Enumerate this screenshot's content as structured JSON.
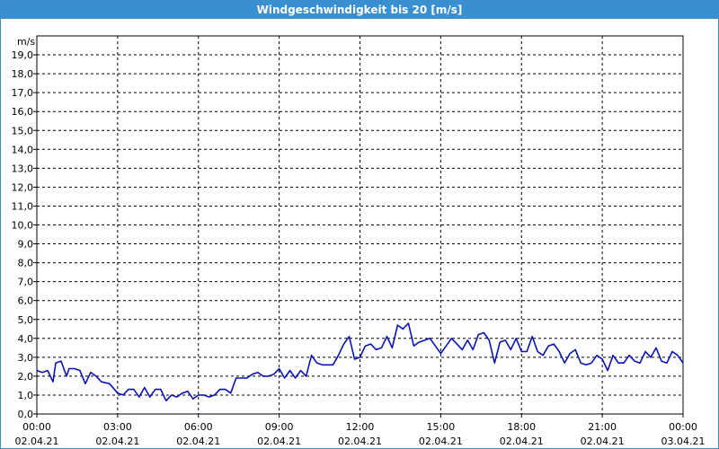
{
  "window": {
    "title": "Windgeschwindigkeit bis 20 [m/s]"
  },
  "colors": {
    "titlebar": "#3a8fd0",
    "series": "#0a14b4",
    "grid": "#000000"
  },
  "chart_data": {
    "type": "line",
    "title": "Windgeschwindigkeit bis 20 [m/s]",
    "ylabel": "m/s",
    "xlabel": "",
    "ylim": [
      0,
      20
    ],
    "y_ticks": [
      "0,0",
      "1,0",
      "2,0",
      "3,0",
      "4,0",
      "5,0",
      "6,0",
      "7,0",
      "8,0",
      "9,0",
      "10,0",
      "11,0",
      "12,0",
      "13,0",
      "14,0",
      "15,0",
      "16,0",
      "17,0",
      "18,0",
      "19,0"
    ],
    "x_ticks": [
      {
        "time": "00:00",
        "date": "02.04.21"
      },
      {
        "time": "03:00",
        "date": "02.04.21"
      },
      {
        "time": "06:00",
        "date": "02.04.21"
      },
      {
        "time": "09:00",
        "date": "02.04.21"
      },
      {
        "time": "12:00",
        "date": "02.04.21"
      },
      {
        "time": "15:00",
        "date": "02.04.21"
      },
      {
        "time": "18:00",
        "date": "02.04.21"
      },
      {
        "time": "21:00",
        "date": "02.04.21"
      },
      {
        "time": "00:00",
        "date": "03.04.21"
      }
    ],
    "grid": true,
    "series": [
      {
        "x_unit": "hours",
        "x": [
          0.0,
          0.2,
          0.4,
          0.6,
          0.7,
          0.9,
          1.1,
          1.2,
          1.4,
          1.6,
          1.8,
          2.0,
          2.2,
          2.4,
          2.7,
          3.0,
          3.2,
          3.4,
          3.6,
          3.8,
          4.0,
          4.2,
          4.4,
          4.6,
          4.8,
          5.0,
          5.2,
          5.4,
          5.6,
          5.8,
          6.0,
          6.2,
          6.4,
          6.6,
          6.8,
          7.0,
          7.2,
          7.4,
          7.6,
          7.8,
          8.0,
          8.2,
          8.4,
          8.6,
          8.8,
          9.0,
          9.2,
          9.4,
          9.6,
          9.8,
          10.0,
          10.2,
          10.4,
          10.6,
          10.8,
          11.0,
          11.2,
          11.4,
          11.6,
          11.8,
          12.0,
          12.2,
          12.4,
          12.6,
          12.8,
          13.0,
          13.2,
          13.4,
          13.6,
          13.8,
          14.0,
          14.2,
          14.4,
          14.6,
          14.8,
          15.0,
          15.2,
          15.4,
          15.6,
          15.8,
          16.0,
          16.2,
          16.4,
          16.6,
          16.8,
          17.0,
          17.2,
          17.4,
          17.6,
          17.8,
          18.0,
          18.2,
          18.4,
          18.6,
          18.8,
          19.0,
          19.2,
          19.4,
          19.6,
          19.8,
          20.0,
          20.2,
          20.4,
          20.6,
          20.8,
          21.0,
          21.2,
          21.4,
          21.6,
          21.8,
          22.0,
          22.2,
          22.4,
          22.6,
          22.8,
          23.0,
          23.2,
          23.4,
          23.6,
          23.8,
          24.0
        ],
        "values": [
          2.3,
          2.2,
          2.3,
          1.7,
          2.7,
          2.8,
          2.0,
          2.4,
          2.4,
          2.3,
          1.6,
          2.2,
          2.0,
          1.7,
          1.6,
          1.1,
          1.0,
          1.3,
          1.3,
          0.9,
          1.4,
          0.9,
          1.3,
          1.3,
          0.7,
          1.0,
          0.9,
          1.1,
          1.2,
          0.8,
          1.0,
          1.0,
          0.9,
          1.0,
          1.3,
          1.3,
          1.1,
          1.9,
          1.9,
          1.9,
          2.1,
          2.2,
          2.0,
          2.0,
          2.1,
          2.4,
          1.9,
          2.3,
          1.9,
          2.3,
          2.0,
          3.1,
          2.7,
          2.6,
          2.6,
          2.6,
          3.1,
          3.7,
          4.1,
          2.9,
          3.0,
          3.6,
          3.7,
          3.4,
          3.5,
          4.1,
          3.5,
          4.7,
          4.5,
          4.8,
          3.6,
          3.8,
          3.9,
          4.0,
          3.6,
          3.2,
          3.6,
          4.0,
          3.7,
          3.4,
          3.9,
          3.4,
          4.2,
          4.3,
          3.9,
          2.7,
          3.8,
          3.9,
          3.4,
          4.0,
          3.3,
          3.3,
          4.1,
          3.3,
          3.1,
          3.6,
          3.7,
          3.3,
          2.7,
          3.2,
          3.4,
          2.7,
          2.6,
          2.7,
          3.1,
          2.9,
          2.3,
          3.1,
          2.7,
          2.7,
          3.1,
          2.8,
          2.7,
          3.3,
          3.0,
          3.5,
          2.8,
          2.7,
          3.3,
          3.1,
          2.7
        ]
      }
    ]
  }
}
